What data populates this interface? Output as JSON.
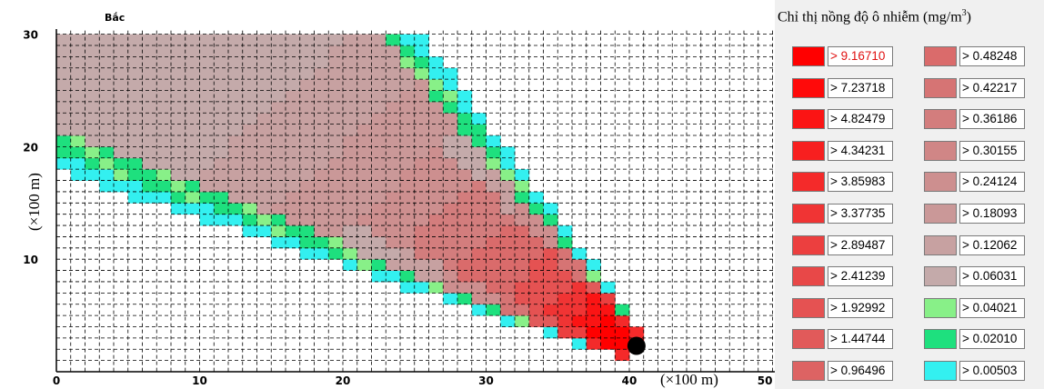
{
  "plot": {
    "north_label": "Bắc",
    "x_unit_label": "(×100 m)",
    "y_unit_label": "(×100 m)",
    "x_ticks": [
      "0",
      "10",
      "20",
      "30",
      "40",
      "50"
    ],
    "y_ticks": [
      "30",
      "20",
      "10"
    ],
    "x_range": [
      0,
      50
    ],
    "y_range": [
      0,
      30
    ],
    "source_marker": {
      "x": 40.5,
      "y": 2.3,
      "color": "#000000"
    }
  },
  "legend": {
    "title_main": "Chỉ thị nồng độ ô nhiễm (mg/m",
    "title_sup": "3",
    "title_end": ")",
    "items": [
      {
        "label": "> 9.16710",
        "color": "#ff0000"
      },
      {
        "label": "> 7.23718",
        "color": "#ff0a0a"
      },
      {
        "label": "> 4.82479",
        "color": "#fb1414"
      },
      {
        "label": "> 4.34231",
        "color": "#f71f1f"
      },
      {
        "label": "> 3.85983",
        "color": "#f42a2a"
      },
      {
        "label": "> 3.37735",
        "color": "#f03434"
      },
      {
        "label": "> 2.89487",
        "color": "#ec3f3f"
      },
      {
        "label": "> 2.41239",
        "color": "#e84848"
      },
      {
        "label": "> 1.92992",
        "color": "#e55252"
      },
      {
        "label": "> 1.44744",
        "color": "#e15a5a"
      },
      {
        "label": "> 0.96496",
        "color": "#dd6363"
      },
      {
        "label": "> 0.48248",
        "color": "#da6b6b"
      },
      {
        "label": "> 0.42217",
        "color": "#d67474"
      },
      {
        "label": "> 0.36186",
        "color": "#d37d7d"
      },
      {
        "label": "> 0.30155",
        "color": "#d08686"
      },
      {
        "label": "> 0.24124",
        "color": "#cd8f8f"
      },
      {
        "label": "> 0.18093",
        "color": "#ca9898"
      },
      {
        "label": "> 0.12062",
        "color": "#c7a1a1"
      },
      {
        "label": "> 0.06031",
        "color": "#c4aaaa"
      },
      {
        "label": "> 0.04021",
        "color": "#88f088"
      },
      {
        "label": "> 0.02010",
        "color": "#1ee07e"
      },
      {
        "label": "> 0.00503",
        "color": "#33f0f0"
      }
    ]
  }
}
